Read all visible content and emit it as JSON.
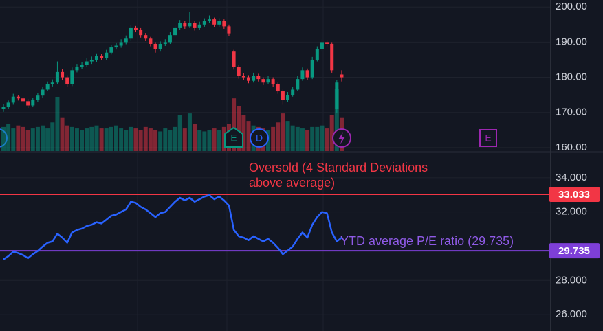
{
  "chart_data": [
    {
      "type": "candlestick",
      "up_color": "#089981",
      "down_color": "#f23645",
      "open": [
        171.0,
        171.5,
        172.8,
        174.5,
        174.0,
        173.2,
        172.0,
        173.5,
        174.8,
        176.5,
        178.0,
        178.5,
        181.5,
        180.0,
        178.0,
        182.0,
        183.0,
        183.5,
        184.5,
        185.0,
        186.0,
        185.5,
        187.0,
        188.5,
        189.0,
        190.0,
        191.0,
        194.0,
        193.5,
        192.0,
        191.0,
        189.5,
        188.0,
        189.5,
        190.0,
        192.0,
        194.0,
        195.5,
        194.5,
        195.5,
        194.0,
        195.0,
        196.0,
        196.5,
        195.0,
        196.0,
        194.5,
        187.5,
        183.0,
        180.5,
        180.0,
        179.0,
        180.5,
        179.5,
        178.5,
        179.5,
        178.0,
        176.0,
        173.5,
        175.0,
        176.5,
        179.5,
        182.0,
        180.0,
        185.0,
        188.0,
        190.0,
        189.5,
        171.0,
        180.8
      ],
      "high": [
        172.3,
        173.4,
        175.3,
        175.0,
        174.6,
        173.8,
        174.2,
        175.6,
        177.3,
        178.8,
        179.4,
        184.5,
        182.3,
        180.6,
        182.8,
        183.8,
        184.3,
        185.4,
        185.9,
        186.8,
        186.7,
        187.8,
        189.3,
        189.9,
        190.8,
        191.9,
        194.8,
        194.6,
        194.0,
        192.6,
        191.5,
        190.0,
        190.2,
        190.8,
        192.8,
        194.8,
        196.3,
        196.0,
        198.5,
        196.1,
        195.8,
        196.8,
        197.6,
        197.0,
        196.8,
        196.5,
        195.0,
        187.8,
        183.6,
        181.2,
        180.6,
        181.3,
        181.0,
        180.0,
        180.3,
        180.0,
        178.5,
        176.5,
        175.8,
        177.3,
        180.3,
        182.8,
        182.5,
        185.8,
        188.8,
        190.8,
        190.6,
        190.0,
        179.3,
        182.0
      ],
      "low": [
        170.2,
        171.0,
        172.2,
        173.4,
        172.5,
        171.3,
        171.5,
        173.0,
        174.2,
        176.0,
        177.4,
        178.0,
        179.3,
        177.2,
        177.5,
        181.4,
        182.4,
        182.9,
        183.8,
        184.4,
        184.8,
        185.0,
        186.5,
        187.9,
        188.4,
        189.4,
        190.5,
        192.8,
        191.3,
        190.3,
        188.8,
        187.0,
        187.5,
        188.9,
        189.5,
        191.5,
        193.4,
        193.8,
        194.0,
        193.3,
        193.4,
        194.4,
        195.4,
        194.3,
        194.4,
        193.8,
        191.8,
        182.2,
        179.6,
        179.2,
        178.3,
        178.5,
        178.8,
        177.8,
        178.0,
        177.3,
        175.3,
        172.2,
        173.0,
        174.5,
        176.0,
        179.0,
        179.3,
        179.5,
        184.5,
        187.5,
        188.8,
        181.3,
        169.8,
        178.8
      ],
      "close": [
        171.5,
        172.8,
        174.5,
        174.0,
        173.2,
        172.0,
        173.5,
        174.8,
        176.5,
        178.0,
        178.5,
        181.5,
        180.0,
        178.0,
        182.0,
        183.0,
        183.5,
        184.5,
        185.0,
        186.0,
        185.5,
        187.0,
        188.5,
        189.0,
        190.0,
        191.0,
        194.0,
        193.5,
        192.0,
        191.0,
        189.5,
        188.0,
        189.5,
        190.0,
        192.0,
        194.0,
        195.5,
        194.5,
        195.5,
        194.0,
        195.0,
        196.0,
        196.5,
        195.0,
        196.0,
        194.5,
        192.5,
        183.0,
        180.5,
        180.0,
        179.0,
        180.5,
        179.5,
        178.5,
        179.5,
        178.0,
        176.0,
        173.5,
        175.0,
        176.5,
        179.5,
        182.0,
        180.0,
        185.0,
        188.0,
        190.0,
        189.5,
        182.0,
        178.5,
        180.0
      ],
      "volume": [
        16,
        18,
        15,
        17,
        16,
        14,
        15,
        16,
        17,
        15,
        19,
        36,
        22,
        17,
        16,
        15,
        14,
        15,
        16,
        17,
        15,
        15,
        16,
        17,
        15,
        14,
        16,
        15,
        14,
        16,
        15,
        14,
        13,
        15,
        14,
        16,
        24,
        15,
        25,
        18,
        14,
        13,
        14,
        15,
        14,
        16,
        18,
        35,
        30,
        24,
        20,
        17,
        16,
        15,
        14,
        16,
        19,
        25,
        20,
        17,
        16,
        15,
        14,
        16,
        16,
        17,
        15,
        24,
        41,
        22
      ],
      "ylim": [
        159,
        202
      ],
      "yticks": [
        {
          "value": 160,
          "label": "160.00"
        },
        {
          "value": 170,
          "label": "170.00"
        },
        {
          "value": 180,
          "label": "180.00"
        },
        {
          "value": 190,
          "label": "190.00"
        },
        {
          "value": 200,
          "label": "200.00"
        }
      ],
      "events": [
        {
          "label": "E",
          "color": "#089981"
        },
        {
          "label": "D",
          "color": "#2962ff"
        },
        {
          "label": "E",
          "color": "#9c27b0"
        }
      ]
    },
    {
      "type": "line",
      "series": [
        {
          "color": "#2962ff",
          "values": [
            29.23,
            29.42,
            29.68,
            29.6,
            29.48,
            29.3,
            29.53,
            29.72,
            29.98,
            30.2,
            30.28,
            30.73,
            30.5,
            30.2,
            30.8,
            30.95,
            31.03,
            31.18,
            31.25,
            31.4,
            31.33,
            31.55,
            31.78,
            31.85,
            32.0,
            32.15,
            32.6,
            32.53,
            32.3,
            32.15,
            31.93,
            31.7,
            31.93,
            32.0,
            32.3,
            32.6,
            32.83,
            32.68,
            32.83,
            32.6,
            32.75,
            32.9,
            32.98,
            32.75,
            32.9,
            32.68,
            32.38,
            30.95,
            30.58,
            30.5,
            30.35,
            30.58,
            30.43,
            30.28,
            30.43,
            30.2,
            29.9,
            29.53,
            29.75,
            29.98,
            30.43,
            30.8,
            30.5,
            31.25,
            31.7,
            32.0,
            31.93,
            30.8,
            30.28,
            30.5
          ]
        }
      ],
      "ylim": [
        25.04,
        35.44
      ],
      "yticks": [
        {
          "value": 26,
          "label": "26.000"
        },
        {
          "value": 28,
          "label": "28.000"
        },
        {
          "value": 32,
          "label": "32.000"
        },
        {
          "value": 34,
          "label": "34.000"
        }
      ],
      "levels": [
        {
          "value": 33.033,
          "color": "#f23645"
        },
        {
          "value": 29.735,
          "color": "#7e3fd8"
        }
      ],
      "annotations": [
        {
          "lines": [
            "Oversold (4 Standard Deviations",
            "above average)"
          ],
          "color": "#f23645"
        },
        {
          "lines": [
            "YTD average P/E ratio (29.735)"
          ],
          "color": "#8f5ae6"
        }
      ]
    }
  ]
}
